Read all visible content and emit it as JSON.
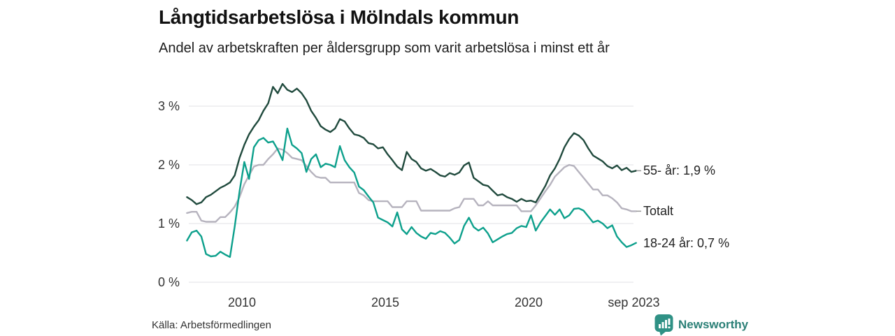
{
  "chart_data": {
    "type": "line",
    "title": "Långtidsarbetslösa i Mölndals kommun",
    "subtitle": "Andel av arbetskraften per åldersgrupp som varit arbetslösa i minst ett år",
    "source": "Källa: Arbetsförmedlingen",
    "unit": "%",
    "x_range": [
      "2008-02",
      "2023-09"
    ],
    "interval_months": 2,
    "grid": "horizontal-only",
    "ylim": [
      0,
      3.6
    ],
    "y_ticks": [
      {
        "value": 0,
        "label": "0 %"
      },
      {
        "value": 1,
        "label": "1 %"
      },
      {
        "value": 2,
        "label": "2 %"
      },
      {
        "value": 3,
        "label": "3 %"
      }
    ],
    "x_ticks": [
      {
        "year": 2010,
        "label": "2010"
      },
      {
        "year": 2015,
        "label": "2015"
      },
      {
        "year": 2020,
        "label": "2020"
      },
      {
        "year": 2023.67,
        "label": "sep 2023"
      }
    ],
    "series": [
      {
        "name": "55- år",
        "end_label": "55- år: 1,9 %",
        "end_value_text": "1,9 %",
        "color": "#204a3d",
        "end_dash": true,
        "values": [
          1.45,
          1.4,
          1.33,
          1.36,
          1.45,
          1.49,
          1.55,
          1.61,
          1.65,
          1.7,
          1.82,
          2.12,
          2.34,
          2.52,
          2.65,
          2.76,
          2.92,
          3.05,
          3.33,
          3.22,
          3.38,
          3.28,
          3.24,
          3.3,
          3.22,
          3.1,
          2.92,
          2.8,
          2.66,
          2.6,
          2.56,
          2.62,
          2.78,
          2.74,
          2.62,
          2.52,
          2.5,
          2.46,
          2.37,
          2.35,
          2.28,
          2.3,
          2.18,
          2.08,
          1.97,
          1.91,
          2.22,
          2.1,
          2.05,
          1.94,
          1.9,
          1.93,
          1.88,
          1.82,
          1.8,
          1.86,
          1.83,
          1.87,
          1.99,
          2.04,
          1.78,
          1.72,
          1.66,
          1.64,
          1.56,
          1.48,
          1.5,
          1.45,
          1.42,
          1.37,
          1.42,
          1.38,
          1.39,
          1.36,
          1.5,
          1.64,
          1.82,
          1.94,
          2.1,
          2.3,
          2.44,
          2.54,
          2.5,
          2.42,
          2.28,
          2.16,
          2.11,
          2.06,
          1.98,
          1.94,
          1.99,
          1.91,
          1.95,
          1.88,
          1.9
        ]
      },
      {
        "name": "Totalt",
        "end_label": "Totalt",
        "end_value_text": "",
        "color": "#b6b3be",
        "end_dash": true,
        "values": [
          1.18,
          1.2,
          1.2,
          1.05,
          1.03,
          1.03,
          1.03,
          1.11,
          1.11,
          1.19,
          1.29,
          1.45,
          1.67,
          1.82,
          1.97,
          2.0,
          2.0,
          2.1,
          2.18,
          2.28,
          2.26,
          2.2,
          2.12,
          2.1,
          2.08,
          1.98,
          1.88,
          1.8,
          1.78,
          1.78,
          1.7,
          1.7,
          1.7,
          1.7,
          1.7,
          1.7,
          1.52,
          1.48,
          1.4,
          1.38,
          1.38,
          1.38,
          1.38,
          1.28,
          1.28,
          1.28,
          1.38,
          1.38,
          1.38,
          1.22,
          1.22,
          1.22,
          1.22,
          1.22,
          1.22,
          1.22,
          1.26,
          1.28,
          1.42,
          1.42,
          1.42,
          1.31,
          1.31,
          1.38,
          1.31,
          1.31,
          1.31,
          1.31,
          1.31,
          1.31,
          1.21,
          1.21,
          1.21,
          1.31,
          1.43,
          1.55,
          1.66,
          1.8,
          1.88,
          1.96,
          2.0,
          1.98,
          1.88,
          1.78,
          1.68,
          1.58,
          1.58,
          1.48,
          1.48,
          1.43,
          1.36,
          1.26,
          1.24,
          1.21,
          1.21
        ]
      },
      {
        "name": "18-24 år",
        "end_label": "18-24 år: 0,7 %",
        "end_value_text": "0,7 %",
        "color": "#0da08c",
        "end_dash": false,
        "values": [
          0.71,
          0.85,
          0.88,
          0.78,
          0.48,
          0.44,
          0.45,
          0.52,
          0.47,
          0.43,
          0.95,
          1.55,
          2.05,
          1.76,
          2.3,
          2.42,
          2.46,
          2.38,
          2.4,
          2.26,
          2.08,
          2.62,
          2.34,
          2.28,
          2.2,
          1.88,
          2.1,
          2.18,
          1.96,
          2.02,
          2.0,
          1.96,
          2.32,
          2.08,
          1.96,
          1.87,
          1.63,
          1.57,
          1.46,
          1.36,
          1.1,
          1.06,
          1.02,
          0.95,
          1.19,
          0.9,
          0.82,
          0.94,
          0.84,
          0.78,
          0.74,
          0.84,
          0.82,
          0.87,
          0.84,
          0.76,
          0.66,
          0.72,
          0.96,
          1.1,
          0.94,
          0.88,
          0.93,
          0.83,
          0.68,
          0.73,
          0.78,
          0.82,
          0.84,
          0.92,
          0.96,
          0.94,
          1.14,
          0.88,
          1.02,
          1.13,
          1.24,
          1.15,
          1.24,
          1.09,
          1.14,
          1.25,
          1.26,
          1.22,
          1.12,
          1.02,
          1.05,
          1.0,
          0.92,
          0.97,
          0.78,
          0.68,
          0.6,
          0.63,
          0.67
        ]
      }
    ]
  },
  "footer": {
    "brand": "Newsworthy"
  },
  "colors": {
    "grid": "#e6e6ea",
    "axis_text": "#333333",
    "end_dash": "#999999",
    "brand_teal": "#2f9185",
    "brand_text": "#2a7f76"
  }
}
